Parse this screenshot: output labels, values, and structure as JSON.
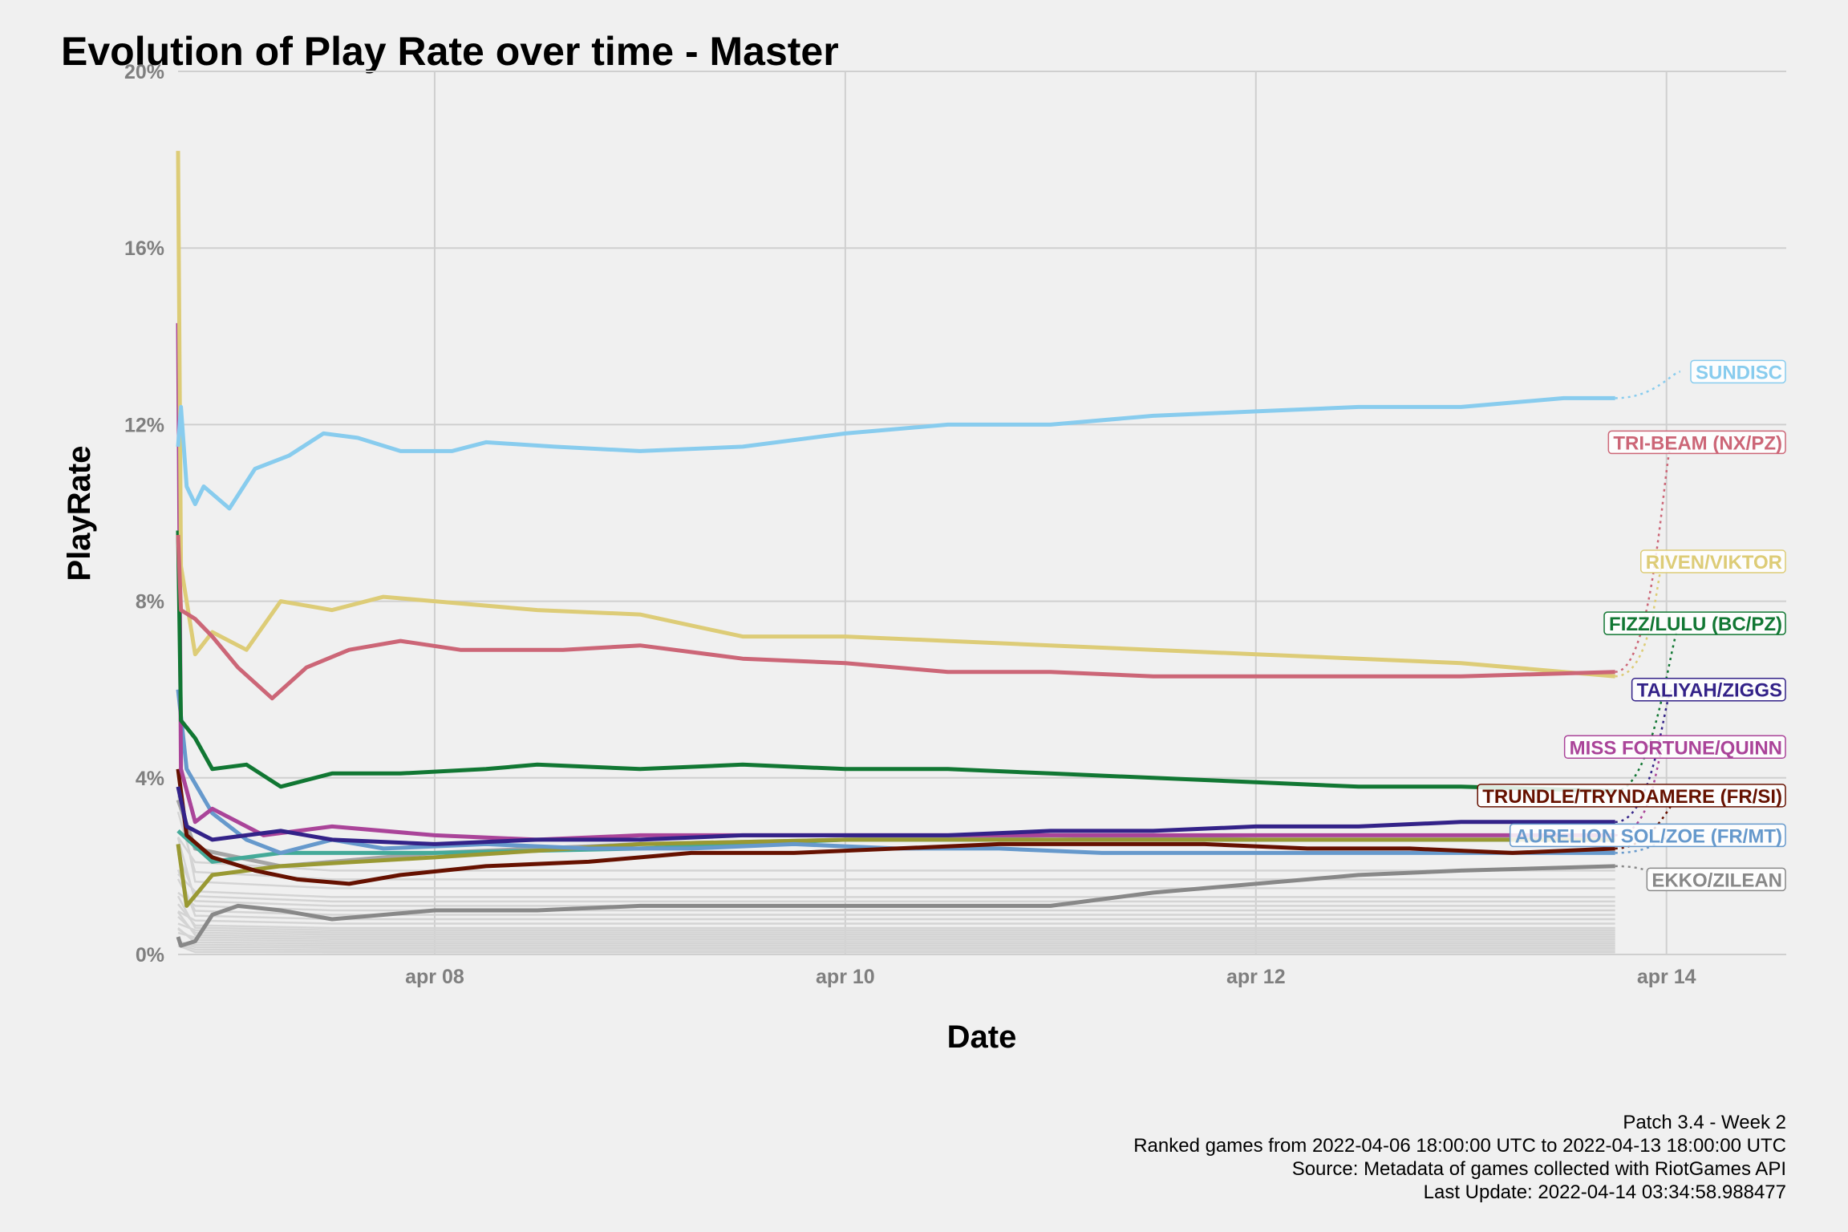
{
  "chart_data": {
    "type": "line",
    "title": "Evolution of Play Rate over time - Master",
    "xlabel": "Date",
    "ylabel": "PlayRate",
    "x_range": [
      "2022-04-06T18:00",
      "2022-04-14T14:00"
    ],
    "ylim": [
      0,
      20
    ],
    "y_ticks": [
      {
        "value": 0,
        "label": "0%"
      },
      {
        "value": 4,
        "label": "4%"
      },
      {
        "value": 8,
        "label": "8%"
      },
      {
        "value": 12,
        "label": "12%"
      },
      {
        "value": 16,
        "label": "16%"
      },
      {
        "value": 20,
        "label": "20%"
      }
    ],
    "x_ticks": [
      {
        "value": "2022-04-08",
        "label": "apr 08"
      },
      {
        "value": "2022-04-10",
        "label": "apr 10"
      },
      {
        "value": "2022-04-12",
        "label": "apr 12"
      },
      {
        "value": "2022-04-14",
        "label": "apr 14"
      }
    ],
    "grid": true,
    "legend": "direct labels at right end of lines",
    "series": [
      {
        "name": "SUNDISC",
        "color": "#88ccee",
        "label_y": 13.2,
        "points": [
          [
            "2022-04-06T18:00",
            11.5
          ],
          [
            "2022-04-06T18:20",
            12.4
          ],
          [
            "2022-04-06T19:00",
            10.6
          ],
          [
            "2022-04-06T20:00",
            10.2
          ],
          [
            "2022-04-06T21:00",
            10.6
          ],
          [
            "2022-04-07T00:00",
            10.1
          ],
          [
            "2022-04-07T03:00",
            11.0
          ],
          [
            "2022-04-07T07:00",
            11.3
          ],
          [
            "2022-04-07T11:00",
            11.8
          ],
          [
            "2022-04-07T15:00",
            11.7
          ],
          [
            "2022-04-07T20:00",
            11.4
          ],
          [
            "2022-04-08T02:00",
            11.4
          ],
          [
            "2022-04-08T06:00",
            11.6
          ],
          [
            "2022-04-08T14:00",
            11.5
          ],
          [
            "2022-04-09T00:00",
            11.4
          ],
          [
            "2022-04-09T12:00",
            11.5
          ],
          [
            "2022-04-10T00:00",
            11.8
          ],
          [
            "2022-04-10T12:00",
            12.0
          ],
          [
            "2022-04-11T00:00",
            12.0
          ],
          [
            "2022-04-11T12:00",
            12.2
          ],
          [
            "2022-04-12T00:00",
            12.3
          ],
          [
            "2022-04-12T12:00",
            12.4
          ],
          [
            "2022-04-13T00:00",
            12.4
          ],
          [
            "2022-04-13T12:00",
            12.6
          ],
          [
            "2022-04-13T18:00",
            12.6
          ]
        ]
      },
      {
        "name": "TRI-BEAM (NX/PZ)",
        "color": "#cc6677",
        "label_y": 11.6,
        "points": [
          [
            "2022-04-06T18:00",
            9.5
          ],
          [
            "2022-04-06T18:20",
            7.8
          ],
          [
            "2022-04-06T20:00",
            7.6
          ],
          [
            "2022-04-06T22:00",
            7.2
          ],
          [
            "2022-04-07T01:00",
            6.5
          ],
          [
            "2022-04-07T05:00",
            5.8
          ],
          [
            "2022-04-07T09:00",
            6.5
          ],
          [
            "2022-04-07T14:00",
            6.9
          ],
          [
            "2022-04-07T20:00",
            7.1
          ],
          [
            "2022-04-08T03:00",
            6.9
          ],
          [
            "2022-04-08T15:00",
            6.9
          ],
          [
            "2022-04-09T00:00",
            7.0
          ],
          [
            "2022-04-09T12:00",
            6.7
          ],
          [
            "2022-04-10T00:00",
            6.6
          ],
          [
            "2022-04-10T12:00",
            6.4
          ],
          [
            "2022-04-11T00:00",
            6.4
          ],
          [
            "2022-04-11T12:00",
            6.3
          ],
          [
            "2022-04-12T00:00",
            6.3
          ],
          [
            "2022-04-12T12:00",
            6.3
          ],
          [
            "2022-04-13T00:00",
            6.3
          ],
          [
            "2022-04-13T18:00",
            6.4
          ]
        ]
      },
      {
        "name": "RIVEN/VIKTOR",
        "color": "#ddcc77",
        "label_y": 8.9,
        "points": [
          [
            "2022-04-06T18:00",
            18.2
          ],
          [
            "2022-04-06T18:20",
            8.8
          ],
          [
            "2022-04-06T20:00",
            6.8
          ],
          [
            "2022-04-06T22:00",
            7.3
          ],
          [
            "2022-04-07T02:00",
            6.9
          ],
          [
            "2022-04-07T06:00",
            8.0
          ],
          [
            "2022-04-07T12:00",
            7.8
          ],
          [
            "2022-04-07T18:00",
            8.1
          ],
          [
            "2022-04-08T00:00",
            8.0
          ],
          [
            "2022-04-08T12:00",
            7.8
          ],
          [
            "2022-04-09T00:00",
            7.7
          ],
          [
            "2022-04-09T12:00",
            7.2
          ],
          [
            "2022-04-10T00:00",
            7.2
          ],
          [
            "2022-04-10T12:00",
            7.1
          ],
          [
            "2022-04-11T00:00",
            7.0
          ],
          [
            "2022-04-11T12:00",
            6.9
          ],
          [
            "2022-04-12T00:00",
            6.8
          ],
          [
            "2022-04-12T12:00",
            6.7
          ],
          [
            "2022-04-13T00:00",
            6.6
          ],
          [
            "2022-04-13T18:00",
            6.3
          ]
        ]
      },
      {
        "name": "FIZZ/LULU (BC/PZ)",
        "color": "#117733",
        "label_y": 7.5,
        "points": [
          [
            "2022-04-06T18:00",
            9.6
          ],
          [
            "2022-04-06T18:20",
            5.3
          ],
          [
            "2022-04-06T20:00",
            4.9
          ],
          [
            "2022-04-06T22:00",
            4.2
          ],
          [
            "2022-04-07T02:00",
            4.3
          ],
          [
            "2022-04-07T06:00",
            3.8
          ],
          [
            "2022-04-07T12:00",
            4.1
          ],
          [
            "2022-04-07T20:00",
            4.1
          ],
          [
            "2022-04-08T06:00",
            4.2
          ],
          [
            "2022-04-08T12:00",
            4.3
          ],
          [
            "2022-04-09T00:00",
            4.2
          ],
          [
            "2022-04-09T12:00",
            4.3
          ],
          [
            "2022-04-10T00:00",
            4.2
          ],
          [
            "2022-04-10T12:00",
            4.2
          ],
          [
            "2022-04-11T00:00",
            4.1
          ],
          [
            "2022-04-11T12:00",
            4.0
          ],
          [
            "2022-04-12T00:00",
            3.9
          ],
          [
            "2022-04-12T12:00",
            3.8
          ],
          [
            "2022-04-13T00:00",
            3.8
          ],
          [
            "2022-04-13T18:00",
            3.7
          ]
        ]
      },
      {
        "name": "TALIYAH/ZIGGS",
        "color": "#332288",
        "label_y": 6.0,
        "points": [
          [
            "2022-04-06T18:00",
            3.8
          ],
          [
            "2022-04-06T19:00",
            2.9
          ],
          [
            "2022-04-06T22:00",
            2.6
          ],
          [
            "2022-04-07T06:00",
            2.8
          ],
          [
            "2022-04-07T12:00",
            2.6
          ],
          [
            "2022-04-08T00:00",
            2.5
          ],
          [
            "2022-04-08T12:00",
            2.6
          ],
          [
            "2022-04-09T00:00",
            2.6
          ],
          [
            "2022-04-09T12:00",
            2.7
          ],
          [
            "2022-04-10T00:00",
            2.7
          ],
          [
            "2022-04-10T12:00",
            2.7
          ],
          [
            "2022-04-11T00:00",
            2.8
          ],
          [
            "2022-04-11T12:00",
            2.8
          ],
          [
            "2022-04-12T00:00",
            2.9
          ],
          [
            "2022-04-12T12:00",
            2.9
          ],
          [
            "2022-04-13T00:00",
            3.0
          ],
          [
            "2022-04-13T18:00",
            3.0
          ]
        ]
      },
      {
        "name": "MISS FORTUNE/QUINN",
        "color": "#aa4499",
        "label_y": 4.7,
        "points": [
          [
            "2022-04-06T18:00",
            14.3
          ],
          [
            "2022-04-06T18:20",
            4.2
          ],
          [
            "2022-04-06T20:00",
            3.0
          ],
          [
            "2022-04-06T22:00",
            3.3
          ],
          [
            "2022-04-07T04:00",
            2.7
          ],
          [
            "2022-04-07T12:00",
            2.9
          ],
          [
            "2022-04-08T00:00",
            2.7
          ],
          [
            "2022-04-08T12:00",
            2.6
          ],
          [
            "2022-04-09T00:00",
            2.7
          ],
          [
            "2022-04-09T12:00",
            2.7
          ],
          [
            "2022-04-10T00:00",
            2.7
          ],
          [
            "2022-04-10T12:00",
            2.7
          ],
          [
            "2022-04-11T00:00",
            2.7
          ],
          [
            "2022-04-12T00:00",
            2.7
          ],
          [
            "2022-04-13T00:00",
            2.7
          ],
          [
            "2022-04-13T18:00",
            2.7
          ]
        ]
      },
      {
        "name": "TRUNDLE/TRYNDAMERE (FR/SI)",
        "color": "#661100",
        "label_y": 3.6,
        "points": [
          [
            "2022-04-06T18:00",
            4.2
          ],
          [
            "2022-04-06T19:00",
            2.7
          ],
          [
            "2022-04-06T22:00",
            2.2
          ],
          [
            "2022-04-07T03:00",
            1.9
          ],
          [
            "2022-04-07T08:00",
            1.7
          ],
          [
            "2022-04-07T14:00",
            1.6
          ],
          [
            "2022-04-07T20:00",
            1.8
          ],
          [
            "2022-04-08T06:00",
            2.0
          ],
          [
            "2022-04-08T18:00",
            2.1
          ],
          [
            "2022-04-09T06:00",
            2.3
          ],
          [
            "2022-04-09T18:00",
            2.3
          ],
          [
            "2022-04-10T06:00",
            2.4
          ],
          [
            "2022-04-10T18:00",
            2.5
          ],
          [
            "2022-04-11T06:00",
            2.5
          ],
          [
            "2022-04-11T18:00",
            2.5
          ],
          [
            "2022-04-12T06:00",
            2.4
          ],
          [
            "2022-04-12T18:00",
            2.4
          ],
          [
            "2022-04-13T06:00",
            2.3
          ],
          [
            "2022-04-13T18:00",
            2.4
          ]
        ]
      },
      {
        "name": "AURELION SOL/ZOE (FR/MT)",
        "color": "#6699cc",
        "label_y": 2.7,
        "points": [
          [
            "2022-04-06T18:00",
            6.0
          ],
          [
            "2022-04-06T19:00",
            4.2
          ],
          [
            "2022-04-06T22:00",
            3.2
          ],
          [
            "2022-04-07T02:00",
            2.6
          ],
          [
            "2022-04-07T06:00",
            2.3
          ],
          [
            "2022-04-07T12:00",
            2.6
          ],
          [
            "2022-04-07T18:00",
            2.4
          ],
          [
            "2022-04-08T06:00",
            2.5
          ],
          [
            "2022-04-08T18:00",
            2.4
          ],
          [
            "2022-04-09T06:00",
            2.4
          ],
          [
            "2022-04-09T18:00",
            2.5
          ],
          [
            "2022-04-10T06:00",
            2.4
          ],
          [
            "2022-04-10T18:00",
            2.4
          ],
          [
            "2022-04-11T06:00",
            2.3
          ],
          [
            "2022-04-12T00:00",
            2.3
          ],
          [
            "2022-04-13T00:00",
            2.3
          ],
          [
            "2022-04-13T18:00",
            2.3
          ]
        ]
      },
      {
        "name": "EKKO/ZILEAN",
        "color": "#888888",
        "label_y": 1.7,
        "points": [
          [
            "2022-04-06T18:00",
            0.4
          ],
          [
            "2022-04-06T18:20",
            0.2
          ],
          [
            "2022-04-06T20:00",
            0.3
          ],
          [
            "2022-04-06T22:00",
            0.9
          ],
          [
            "2022-04-07T01:00",
            1.1
          ],
          [
            "2022-04-07T06:00",
            1.0
          ],
          [
            "2022-04-07T12:00",
            0.8
          ],
          [
            "2022-04-08T00:00",
            1.0
          ],
          [
            "2022-04-08T12:00",
            1.0
          ],
          [
            "2022-04-09T00:00",
            1.1
          ],
          [
            "2022-04-09T12:00",
            1.1
          ],
          [
            "2022-04-10T00:00",
            1.1
          ],
          [
            "2022-04-10T12:00",
            1.1
          ],
          [
            "2022-04-11T00:00",
            1.1
          ],
          [
            "2022-04-11T12:00",
            1.4
          ],
          [
            "2022-04-12T00:00",
            1.6
          ],
          [
            "2022-04-12T12:00",
            1.8
          ],
          [
            "2022-04-13T00:00",
            1.9
          ],
          [
            "2022-04-13T18:00",
            2.0
          ]
        ]
      }
    ],
    "extra_series": [
      {
        "color": "#a5a5a5",
        "points": [
          [
            "2022-04-06T18:00",
            3.5
          ],
          [
            "2022-04-06T20:00",
            2.4
          ],
          [
            "2022-04-07T06:00",
            2.0
          ],
          [
            "2022-04-08T00:00",
            2.3
          ],
          [
            "2022-04-09T00:00",
            2.5
          ],
          [
            "2022-04-10T00:00",
            2.6
          ],
          [
            "2022-04-11T00:00",
            2.7
          ],
          [
            "2022-04-12T00:00",
            2.6
          ],
          [
            "2022-04-13T18:00",
            2.6
          ]
        ]
      },
      {
        "color": "#44aa99",
        "points": [
          [
            "2022-04-06T18:00",
            2.8
          ],
          [
            "2022-04-06T22:00",
            2.1
          ],
          [
            "2022-04-07T06:00",
            2.3
          ],
          [
            "2022-04-08T00:00",
            2.3
          ],
          [
            "2022-04-09T00:00",
            2.4
          ],
          [
            "2022-04-10T00:00",
            2.6
          ],
          [
            "2022-04-11T00:00",
            2.6
          ],
          [
            "2022-04-12T00:00",
            2.6
          ],
          [
            "2022-04-13T18:00",
            2.6
          ]
        ]
      },
      {
        "color": "#999933",
        "points": [
          [
            "2022-04-06T18:00",
            2.5
          ],
          [
            "2022-04-06T19:00",
            1.1
          ],
          [
            "2022-04-06T22:00",
            1.8
          ],
          [
            "2022-04-07T06:00",
            2.0
          ],
          [
            "2022-04-08T00:00",
            2.2
          ],
          [
            "2022-04-09T00:00",
            2.5
          ],
          [
            "2022-04-10T00:00",
            2.6
          ],
          [
            "2022-04-11T00:00",
            2.6
          ],
          [
            "2022-04-12T00:00",
            2.6
          ],
          [
            "2022-04-13T18:00",
            2.6
          ]
        ]
      }
    ],
    "background_series_levels": [
      1.9,
      1.7,
      1.5,
      1.3,
      1.2,
      1.1,
      1.0,
      0.9,
      0.8,
      0.7,
      0.6,
      0.55,
      0.5,
      0.45,
      0.4,
      0.35,
      0.3,
      0.25,
      0.2,
      0.15,
      0.1,
      0.05
    ],
    "background_color": "#d4d4d4"
  },
  "caption": [
    "Patch 3.4 - Week 2",
    "Ranked games from 2022-04-06 18:00:00 UTC to 2022-04-13 18:00:00 UTC",
    "Source: Metadata of games collected with RiotGames API",
    "Last Update: 2022-04-14 03:34:58.988477"
  ]
}
